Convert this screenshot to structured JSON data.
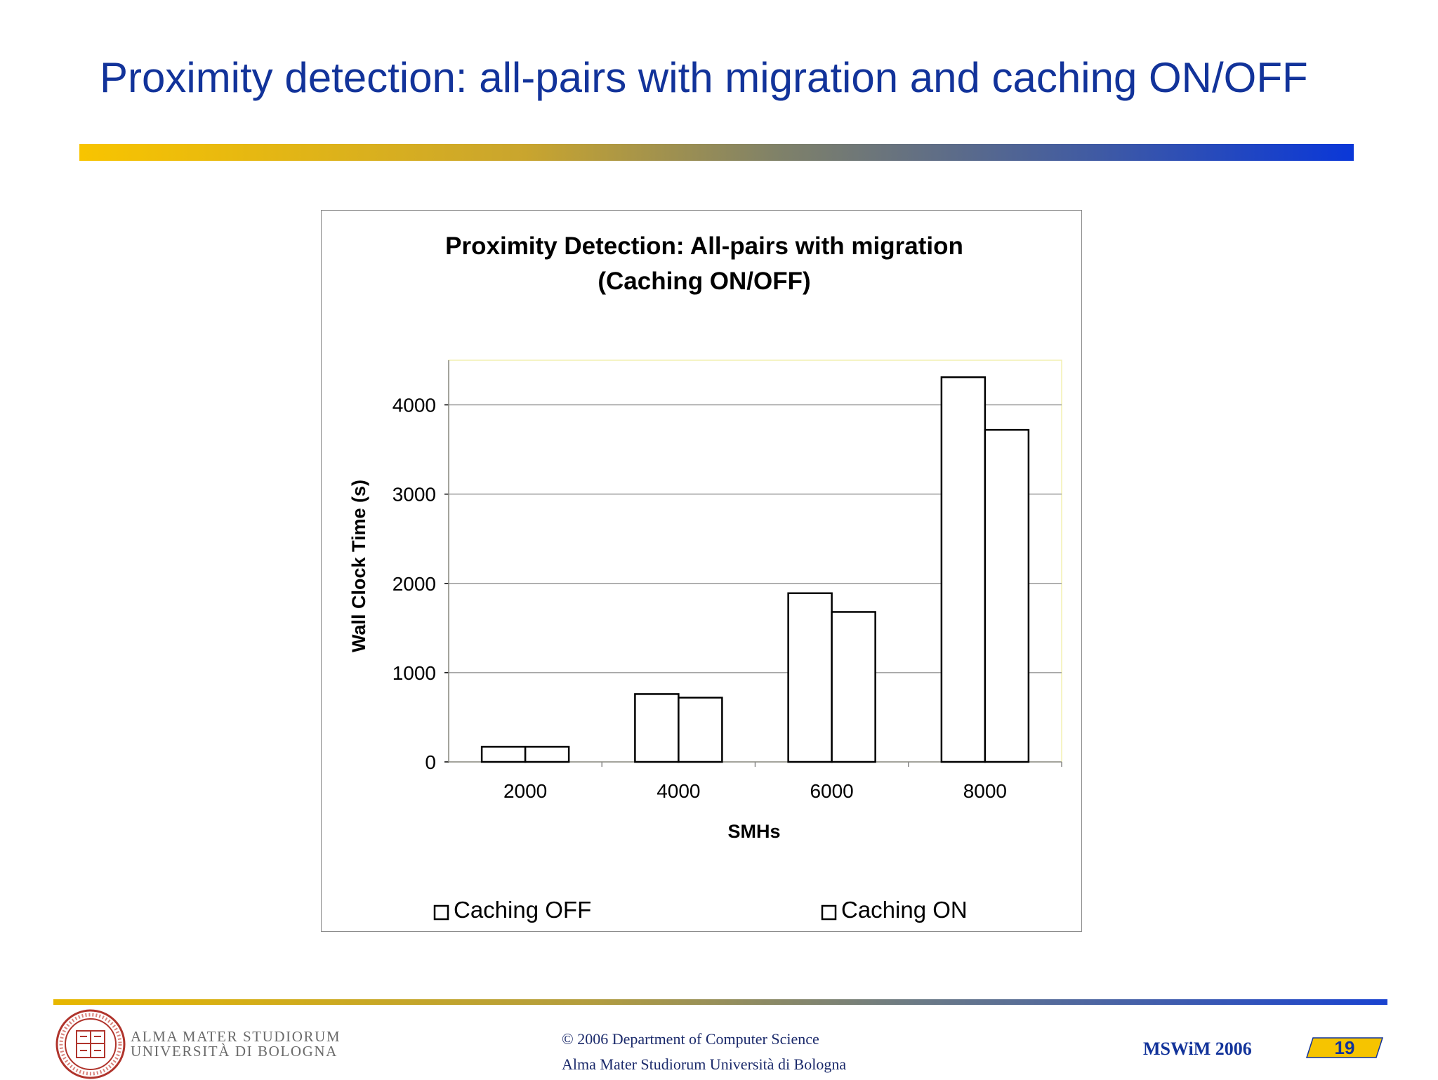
{
  "slide": {
    "title": "Proximity detection: all-pairs with migration and caching ON/OFF"
  },
  "chart_data": {
    "type": "bar",
    "title_lines": [
      "Proximity Detection: All-pairs with migration",
      "(Caching ON/OFF)"
    ],
    "xlabel": "SMHs",
    "ylabel": "Wall Clock Time (s)",
    "categories": [
      "2000",
      "4000",
      "6000",
      "8000"
    ],
    "series": [
      {
        "name": "Caching OFF",
        "values": [
          170,
          760,
          1890,
          4310
        ]
      },
      {
        "name": "Caching ON",
        "values": [
          170,
          720,
          1680,
          3720
        ]
      }
    ],
    "ylim": [
      0,
      4500
    ],
    "yticks": [
      0,
      1000,
      2000,
      3000,
      4000
    ],
    "grid": true,
    "legend_position": "bottom",
    "colors": {
      "bar_fill": "#ffffff",
      "bar_stroke": "#000000",
      "grid": "#9a9a9a",
      "plot_border": "#f2f0b0"
    }
  },
  "footer": {
    "logo_line1": "ALMA MATER STUDIORUM",
    "logo_line2": "UNIVERSITÀ DI BOLOGNA",
    "copyright": "© 2006 Department of Computer Science",
    "university": "Alma Mater Studiorum Università di Bologna",
    "conference": "MSWiM 2006",
    "page_number": "19"
  }
}
